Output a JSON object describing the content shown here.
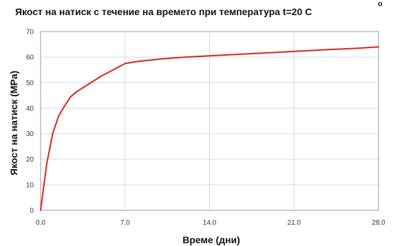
{
  "chart_data": {
    "type": "line",
    "title": "Якост на натиск с течение на времето  при температура t=20 С",
    "title_superscript": "o",
    "xlabel": "Време (дни)",
    "ylabel": "Якост на натиск (MPa)",
    "xlim": [
      0,
      28
    ],
    "ylim": [
      0,
      70
    ],
    "x_ticks": [
      0,
      7,
      14,
      21,
      28
    ],
    "x_tick_labels": [
      "0.0",
      "7.0",
      "14.0",
      "21.0",
      "28.0"
    ],
    "y_ticks": [
      0,
      10,
      20,
      30,
      40,
      50,
      60,
      70
    ],
    "y_tick_labels": [
      "0",
      "10",
      "20",
      "30",
      "40",
      "50",
      "60",
      "70"
    ],
    "grid": true,
    "series": [
      {
        "color": "#e0201c",
        "x": [
          0,
          0.5,
          1,
          1.5,
          2,
          2.5,
          3,
          4,
          5,
          6,
          7,
          8,
          10,
          12,
          14,
          16,
          18,
          20,
          22,
          24,
          26,
          28
        ],
        "y": [
          0,
          18,
          30,
          37,
          41,
          44.5,
          46.5,
          49.5,
          52.5,
          55,
          57.5,
          58.3,
          59.3,
          60,
          60.5,
          61,
          61.5,
          62,
          62.5,
          63,
          63.4,
          64
        ]
      }
    ]
  }
}
